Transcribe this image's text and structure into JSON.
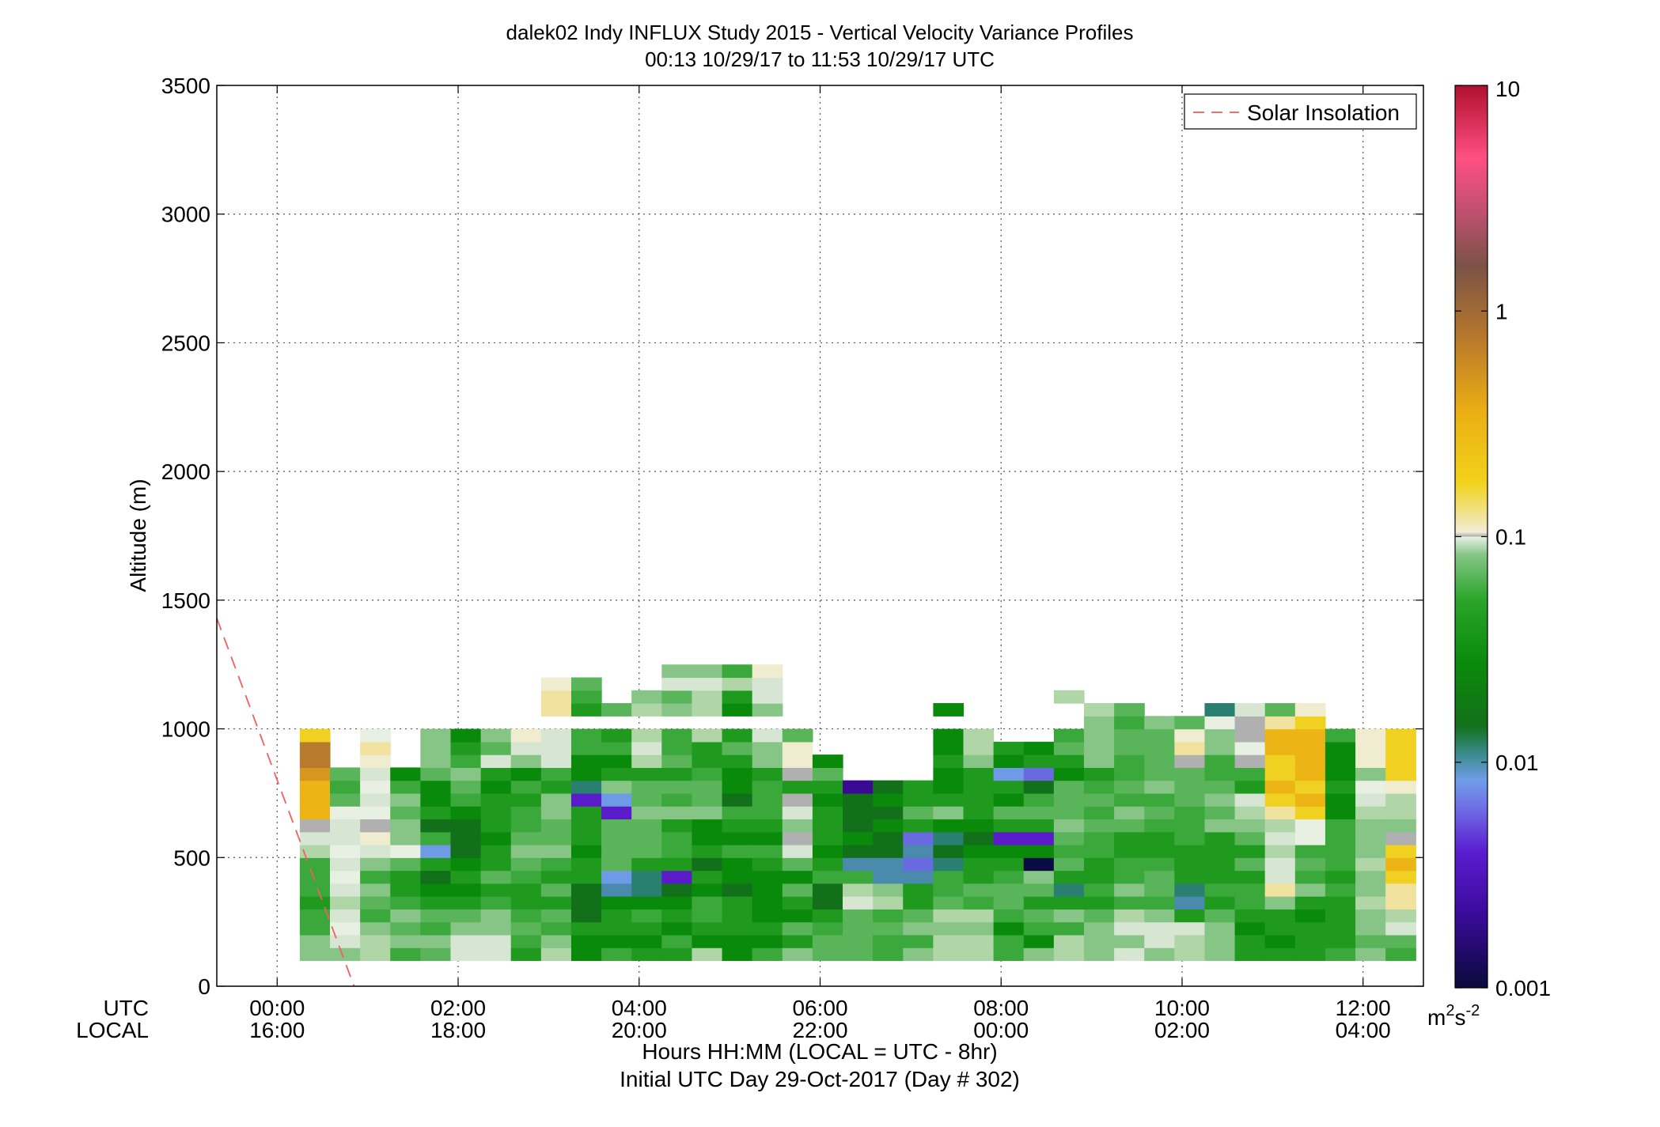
{
  "chart_data": {
    "type": "heatmap",
    "title": "dalek02 Indy INFLUX Study 2015 - Vertical Velocity Variance Profiles",
    "subtitle": "00:13 10/29/17 to 11:53 10/29/17  UTC",
    "ylabel": "Altitude (m)",
    "ylim": [
      0,
      3500
    ],
    "yticks": [
      "0",
      "500",
      "1000",
      "1500",
      "2000",
      "2500",
      "3000",
      "3500"
    ],
    "xlim": [
      -0.667,
      12.667
    ],
    "xticks_utc": [
      "00:00",
      "02:00",
      "04:00",
      "06:00",
      "08:00",
      "10:00",
      "12:00"
    ],
    "xticks_local": [
      "16:00",
      "18:00",
      "20:00",
      "22:00",
      "00:00",
      "02:00",
      "04:00"
    ],
    "row_label_utc": "UTC",
    "row_label_local": "LOCAL",
    "xlabel_line1": "Hours HH:MM  (LOCAL = UTC - 8hr)",
    "xlabel_line2": "Initial UTC Day 29-Oct-2017 (Day # 302)",
    "grid": true,
    "legend": {
      "label": "Solar Insolation",
      "placement": "top-right"
    },
    "solar_insolation_line": {
      "x": [
        -0.667,
        0.85
      ],
      "y": [
        1430,
        0
      ]
    },
    "colorbar": {
      "scale": "log",
      "range": [
        0.001,
        10
      ],
      "tick_labels": [
        "10",
        "1",
        "0.1",
        "0.01",
        "0.001"
      ],
      "unit_main": "m",
      "unit_sup1": "2",
      "unit_mid": "s",
      "unit_sup2": "-2"
    },
    "time_start": 0.25,
    "time_step": 0.3333,
    "alt_start": 100,
    "alt_step": 50,
    "column_heights": [
      1100,
      950,
      900,
      950,
      950,
      1050,
      950,
      1100,
      1100,
      1200,
      1200,
      1200,
      1250,
      1250,
      1250,
      1150,
      1050,
      950,
      950,
      850,
      850,
      850,
      1050,
      1050,
      950,
      950,
      1150,
      1150,
      1150,
      1200,
      1150,
      1150,
      1100,
      1100,
      1100,
      1050,
      1050
    ],
    "palette": {
      "0": "#0a0a45",
      "1": "#3b0a95",
      "2": "#5a1cc8",
      "3": "#6a6ae0",
      "4": "#6f9ae6",
      "5": "#4a8aac",
      "6": "#2a8070",
      "7": "#12701a",
      "8": "#0a8a0a",
      "9": "#1f9a1f",
      "10": "#3aa83a",
      "11": "#5ab55a",
      "12": "#86c586",
      "13": "#b0d6a8",
      "14": "#d6e6d3",
      "15": "#e7f0e3",
      "16": "#b0b0b0",
      "17": "#f0ecd0",
      "18": "#f1e2a0",
      "19": "#f0d020",
      "20": "#ecb415",
      "21": "#d89620",
      "22": "#b87a2c"
    },
    "values_index_rows": [
      "12,12,13,10,11,14,14,9,13,8,10,9,9,13,8,10,12,11,11,10,12,13,13,10,12,13,12,14,12,13,12,9,9,9,10,12,10",
      "12,14,13,12,12,14,14,10,12,8,8,8,10,8,8,8,9,11,11,10,10,13,13,10,8,13,12,12,14,13,12,9,8,9,9,11,11",
      "10,15,12,11,10,12,12,11,10,9,9,9,8,9,9,9,11,10,11,11,12,12,12,8,10,10,12,14,14,14,12,8,9,9,9,12,14",
      "10,14,10,12,11,11,12,10,11,7,9,10,9,10,9,8,8,9,11,10,11,13,13,10,11,12,11,13,12,9,11,9,9,8,9,12,13",
      "9,13,11,10,9,9,10,9,9,7,8,8,8,10,9,8,9,7,14,13,9,11,10,11,9,9,9,10,10,5,9,10,12,9,9,13,18",
      "10,14,12,9,8,8,9,9,11,7,5,6,7,8,7,8,11,7,13,12,9,10,11,11,11,6,10,12,11,6,10,10,18,12,10,12,18",
      "10,15,10,9,7,9,11,10,9,9,4,6,2,9,8,8,8,10,10,5,5,10,9,10,12,9,9,10,11,9,9,9,14,10,9,12,19",
      "10,14,12,11,9,8,9,11,10,9,11,9,9,7,8,9,11,9,5,5,3,6,9,9,0,11,9,10,10,9,9,11,14,11,10,13,20",
      "13,15,14,15,4,7,9,12,12,8,11,11,10,9,10,10,14,8,7,7,5,7,8,8,8,10,10,9,9,9,9,9,13,10,10,12,19",
      "14,14,17,12,10,7,8,11,11,9,11,11,10,8,8,8,16,9,8,7,3,6,7,2,2,11,10,9,9,10,9,11,14,15,10,12,16",
      "16,14,16,12,7,7,9,10,11,9,11,11,9,8,9,9,12,9,7,8,9,8,8,9,9,12,11,11,10,10,12,12,13,15,10,12,12",
      "20,15,15,11,9,8,9,10,12,9,2,12,12,12,10,10,14,9,7,7,11,12,9,11,11,11,10,12,11,10,11,13,18,19,8,13,13",
      "20,11,14,12,8,10,9,9,12,2,4,11,10,11,7,10,16,8,7,8,9,9,9,8,10,11,11,10,10,11,12,14,19,20,8,14,13",
      "20,10,15,10,8,11,8,10,9,6,12,11,11,11,8,10,9,9,1,7,9,8,9,9,7,11,10,11,12,11,11,9,20,19,9,15,17",
      "21,11,14,8,11,12,9,8,10,8,9,9,9,10,8,9,16,11,null,null,null,8,9,4,3,8,9,10,11,11,10,10,19,20,8,12,19",
      "22,null,17,null,12,10,14,12,14,8,8,13,11,9,9,12,17,8,null,null,null,9,12,8,9,9,12,10,11,16,10,16,19,20,8,17,19",
      "22,null,18,null,12,9,11,14,14,10,10,14,10,9,11,12,17,null,null,null,null,8,13,9,8,11,12,11,11,18,12,15,20,20,8,17,19",
      "19,null,15,null,12,8,12,17,14,10,9,13,10,13,9,14,11,null,null,null,null,8,13,null,null,10,12,11,11,17,12,16,20,20,10,17,19",
      "null,null,null,null,null,null,null,null,null,null,null,null,null,null,null,null,null,null,null,null,null,null,null,null,null,null,12,10,12,11,15,16,18,19,null,null,null",
      "null,null,null,null,null,null,null,null,18,9,11,13,12,13,8,12,null,null,null,null,null,8,null,null,null,null,13,11,null,null,6,14,11,17,null,null,null",
      "null,null,null,null,null,null,null,null,18,10,null,12,11,13,9,14,null,null,null,null,null,null,null,null,null,13,null,null,null,null,null,null,null,null,null,null,null",
      "null,null,null,null,null,null,null,null,17,11,null,null,14,14,13,14,null,null,null,null,null,null,null,null,null,null,null,null,null,null,null,null,null,null,null,null,null",
      "null,null,null,null,null,null,null,null,null,null,null,null,12,12,10,17,null,null,null,null,null,null,null,null,null,null,null,null,null,null,null,null,null,null,null,null,null"
    ]
  }
}
